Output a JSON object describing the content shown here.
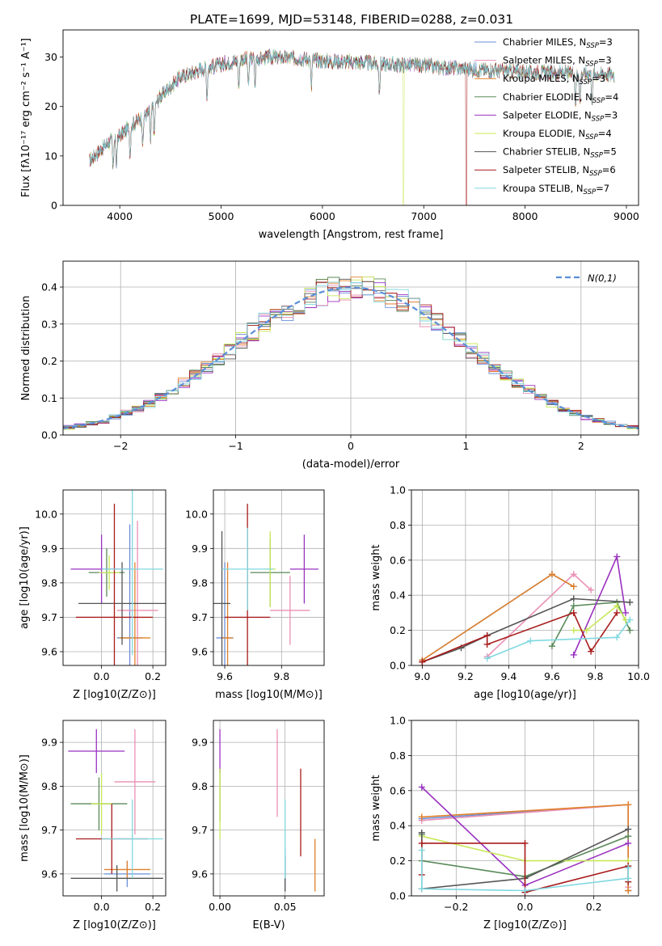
{
  "title": "PLATE=1699, MJD=53148, FIBERID=0288, z=0.031",
  "models": [
    {
      "label": "Chabrier MILES, N",
      "sub": "SSP",
      "suffix": "=3",
      "color": "#6a8fd8"
    },
    {
      "label": "Salpeter MILES, N",
      "sub": "SSP",
      "suffix": "=3",
      "color": "#e98fb4"
    },
    {
      "label": "Kroupa MILES, N",
      "sub": "SSP",
      "suffix": "=3",
      "color": "#e0812a"
    },
    {
      "label": "Chabrier ELODIE, N",
      "sub": "SSP",
      "suffix": "=4",
      "color": "#5a8a5a"
    },
    {
      "label": "Salpeter ELODIE, N",
      "sub": "SSP",
      "suffix": "=3",
      "color": "#9a32c0"
    },
    {
      "label": "Kroupa ELODIE, N",
      "sub": "SSP",
      "suffix": "=4",
      "color": "#c8e85a"
    },
    {
      "label": "Chabrier STELIB, N",
      "sub": "SSP",
      "suffix": "=5",
      "color": "#555555"
    },
    {
      "label": "Salpeter STELIB, N",
      "sub": "SSP",
      "suffix": "=6",
      "color": "#a81c1c"
    },
    {
      "label": "Kroupa STELIB, N",
      "sub": "SSP",
      "suffix": "=7",
      "color": "#80d8e0"
    }
  ],
  "chart_data": [
    {
      "type": "line",
      "name": "spectrum",
      "xlabel": "wavelength [Angstrom, rest frame]",
      "ylabel": "Flux [fλ10⁻¹⁷ erg cm⁻² s⁻¹ A⁻¹]",
      "xlim": [
        3440,
        9120
      ],
      "ylim": [
        0,
        35.5
      ],
      "xticks": [
        4000,
        5000,
        6000,
        7000,
        8000,
        9000
      ],
      "yticks": [
        0,
        10,
        20,
        30
      ],
      "continuum_x": [
        3700,
        3800,
        3900,
        4000,
        4100,
        4200,
        4300,
        4400,
        4500,
        4600,
        4800,
        5000,
        5200,
        5500,
        5800,
        6000,
        6300,
        6600,
        7000,
        7500,
        8000,
        8500,
        8900
      ],
      "continuum_y": [
        9,
        11,
        13,
        14,
        16,
        17.5,
        19,
        22,
        24,
        26,
        27.5,
        28.5,
        29.5,
        30,
        29.7,
        29.2,
        29,
        28.6,
        28.2,
        27.5,
        27,
        26.7,
        26.5
      ],
      "dropouts": [
        {
          "x": 6800,
          "model": 5
        },
        {
          "x": 7420,
          "model": 7
        }
      ]
    },
    {
      "type": "bar",
      "name": "residual-histogram",
      "xlabel": "(data-model)/error",
      "ylabel": "Normed distribution",
      "xlim": [
        -2.5,
        2.5
      ],
      "ylim": [
        0,
        0.47
      ],
      "xticks": [
        -2,
        -1,
        0,
        1,
        2
      ],
      "yticks": [
        0.0,
        0.1,
        0.2,
        0.3,
        0.4
      ],
      "bin_width": 0.1,
      "legend": "N(0,1)"
    },
    {
      "type": "scatter",
      "name": "age-vs-Z",
      "xlabel": "Z [log10(Z/Z⊙)]",
      "ylabel": "age [log10(age/yr)]",
      "xlim": [
        -0.15,
        0.25
      ],
      "ylim": [
        9.56,
        10.07
      ],
      "xticks": [
        0.0,
        0.2
      ],
      "yticks": [
        9.6,
        9.7,
        9.8,
        9.9,
        10.0
      ],
      "points": [
        {
          "model": 0,
          "x": 0.11,
          "y": 9.64,
          "xe": 0.05,
          "ye": 0.33
        },
        {
          "model": 1,
          "x": 0.14,
          "y": 9.72,
          "xe": 0.08,
          "ye": 0.26
        },
        {
          "model": 2,
          "x": 0.13,
          "y": 9.64,
          "xe": 0.06,
          "ye": 0.22
        },
        {
          "model": 3,
          "x": 0.02,
          "y": 9.83,
          "xe": 0.07,
          "ye": 0.07
        },
        {
          "model": 4,
          "x": 0.0,
          "y": 9.84,
          "xe": 0.12,
          "ye": 0.1
        },
        {
          "model": 5,
          "x": 0.03,
          "y": 9.83,
          "xe": 0.04,
          "ye": 0.05
        },
        {
          "model": 6,
          "x": 0.08,
          "y": 9.74,
          "xe": 0.17,
          "ye": 0.12
        },
        {
          "model": 7,
          "x": 0.05,
          "y": 9.7,
          "xe": 0.15,
          "ye": 0.33
        },
        {
          "model": 8,
          "x": 0.12,
          "y": 9.84,
          "xe": 0.12,
          "ye": 0.25
        }
      ]
    },
    {
      "type": "scatter",
      "name": "age-vs-mass",
      "xlabel": "mass [log10(M/M⊙)]",
      "ylabel": "",
      "xlim": [
        9.56,
        9.95
      ],
      "ylim": [
        9.56,
        10.07
      ],
      "xticks": [
        9.6,
        9.8
      ],
      "yticks": [
        9.6,
        9.7,
        9.8,
        9.9,
        10.0
      ],
      "points": [
        {
          "model": 0,
          "x": 9.6,
          "y": 9.64,
          "xe": 0.03,
          "ye": 0.22
        },
        {
          "model": 1,
          "x": 9.83,
          "y": 9.72,
          "xe": 0.07,
          "ye": 0.1
        },
        {
          "model": 2,
          "x": 9.61,
          "y": 9.64,
          "xe": 0.02,
          "ye": 0.22
        },
        {
          "model": 3,
          "x": 9.76,
          "y": 9.83,
          "xe": 0.07,
          "ye": 0.1
        },
        {
          "model": 4,
          "x": 9.88,
          "y": 9.84,
          "xe": 0.05,
          "ye": 0.1
        },
        {
          "model": 5,
          "x": 9.76,
          "y": 9.84,
          "xe": 0.02,
          "ye": 0.11
        },
        {
          "model": 6,
          "x": 9.59,
          "y": 9.74,
          "xe": 0.03,
          "ye": 0.21
        },
        {
          "model": 7,
          "x": 9.68,
          "y": 9.7,
          "xe": 0.08,
          "ye": 0.33
        },
        {
          "model": 8,
          "x": 9.68,
          "y": 9.84,
          "xe": 0.09,
          "ye": 0.12
        }
      ]
    },
    {
      "type": "line",
      "name": "mass-weight-vs-age",
      "xlabel": "age [log10(age/yr)]",
      "ylabel": "mass weight",
      "xlim": [
        8.95,
        10.0
      ],
      "ylim": [
        0,
        1
      ],
      "xticks": [
        9.0,
        9.2,
        9.4,
        9.6,
        9.8,
        10.0
      ],
      "yticks": [
        0.0,
        0.2,
        0.4,
        0.6,
        0.8,
        1.0
      ],
      "series": [
        {
          "model": 0,
          "x": [
            9.0,
            9.6,
            9.7
          ],
          "y": [
            0.03,
            0.52,
            0.45
          ]
        },
        {
          "model": 1,
          "x": [
            9.3,
            9.7,
            9.78
          ],
          "y": [
            0.05,
            0.52,
            0.43
          ]
        },
        {
          "model": 2,
          "x": [
            9.0,
            9.6,
            9.7
          ],
          "y": [
            0.03,
            0.52,
            0.45
          ]
        },
        {
          "model": 3,
          "x": [
            9.6,
            9.7,
            9.9,
            9.96
          ],
          "y": [
            0.11,
            0.34,
            0.36,
            0.2
          ]
        },
        {
          "model": 4,
          "x": [
            9.7,
            9.9,
            9.94
          ],
          "y": [
            0.06,
            0.62,
            0.3
          ]
        },
        {
          "model": 5,
          "x": [
            9.7,
            9.76,
            9.9,
            9.94
          ],
          "y": [
            0.2,
            0.2,
            0.34,
            0.26
          ]
        },
        {
          "model": 6,
          "x": [
            9.0,
            9.18,
            9.3,
            9.7,
            9.96
          ],
          "y": [
            0.02,
            0.1,
            0.17,
            0.38,
            0.36
          ]
        },
        {
          "model": 7,
          "x": [
            9.0,
            9.3,
            9.3,
            9.7,
            9.78,
            9.9
          ],
          "y": [
            0.02,
            0.17,
            0.12,
            0.3,
            0.08,
            0.3
          ]
        },
        {
          "model": 8,
          "x": [
            9.3,
            9.5,
            9.9,
            9.96
          ],
          "y": [
            0.04,
            0.14,
            0.16,
            0.26
          ]
        }
      ]
    },
    {
      "type": "scatter",
      "name": "mass-vs-Z",
      "xlabel": "Z [log10(Z/Z⊙)]",
      "ylabel": "mass [log10(M/M⊙)]",
      "xlim": [
        -0.15,
        0.25
      ],
      "ylim": [
        9.55,
        9.95
      ],
      "xticks": [
        0.0,
        0.2
      ],
      "yticks": [
        9.6,
        9.7,
        9.8,
        9.9
      ],
      "points": [
        {
          "model": 0,
          "x": 0.1,
          "y": 9.6,
          "xe": 0.09,
          "ye": 0.03
        },
        {
          "model": 1,
          "x": 0.13,
          "y": 9.81,
          "xe": 0.08,
          "ye": 0.12
        },
        {
          "model": 2,
          "x": 0.1,
          "y": 9.61,
          "xe": 0.09,
          "ye": 0.02
        },
        {
          "model": 3,
          "x": -0.01,
          "y": 9.76,
          "xe": 0.11,
          "ye": 0.06
        },
        {
          "model": 4,
          "x": -0.02,
          "y": 9.88,
          "xe": 0.11,
          "ye": 0.05
        },
        {
          "model": 5,
          "x": 0.0,
          "y": 9.76,
          "xe": 0.04,
          "ye": 0.07
        },
        {
          "model": 6,
          "x": 0.06,
          "y": 9.59,
          "xe": 0.18,
          "ye": 0.03
        },
        {
          "model": 7,
          "x": 0.04,
          "y": 9.68,
          "xe": 0.14,
          "ye": 0.08
        },
        {
          "model": 8,
          "x": 0.12,
          "y": 9.68,
          "xe": 0.12,
          "ye": 0.09
        }
      ]
    },
    {
      "type": "scatter",
      "name": "mass-vs-EBV",
      "xlabel": "E(B-V)",
      "ylabel": "",
      "xlim": [
        -0.005,
        0.08
      ],
      "ylim": [
        9.55,
        9.95
      ],
      "xticks": [
        0.0,
        0.05
      ],
      "yticks": [
        9.6,
        9.7,
        9.8,
        9.9
      ],
      "points": [
        {
          "model": 0,
          "x": 0.05,
          "y": 9.61,
          "xe": 0,
          "ye": 0.05
        },
        {
          "model": 1,
          "x": 0.044,
          "y": 9.83,
          "xe": 0,
          "ye": 0.1
        },
        {
          "model": 2,
          "x": 0.073,
          "y": 9.62,
          "xe": 0,
          "ye": 0.06
        },
        {
          "model": 3,
          "x": 0.0,
          "y": 9.78,
          "xe": 0,
          "ye": 0.06
        },
        {
          "model": 4,
          "x": 0.0,
          "y": 9.88,
          "xe": 0,
          "ye": 0.05
        },
        {
          "model": 5,
          "x": 0.0,
          "y": 9.76,
          "xe": 0,
          "ye": 0.08
        },
        {
          "model": 6,
          "x": 0.05,
          "y": 9.6,
          "xe": 0,
          "ye": 0.04
        },
        {
          "model": 7,
          "x": 0.062,
          "y": 9.74,
          "xe": 0,
          "ye": 0.1
        },
        {
          "model": 8,
          "x": 0.05,
          "y": 9.68,
          "xe": 0,
          "ye": 0.09
        }
      ]
    },
    {
      "type": "line",
      "name": "mass-weight-vs-Z",
      "xlabel": "Z [log10(Z/Z⊙)]",
      "ylabel": "mass weight",
      "xlim": [
        -0.33,
        0.33
      ],
      "ylim": [
        0,
        1
      ],
      "xticks": [
        -0.2,
        0.0,
        0.2
      ],
      "yticks": [
        0.0,
        0.2,
        0.4,
        0.6,
        0.8,
        1.0
      ],
      "series": [
        {
          "model": 0,
          "x": [
            -0.3,
            0.3,
            0.3
          ],
          "y": [
            0.44,
            0.52,
            0.03
          ]
        },
        {
          "model": 1,
          "x": [
            -0.3,
            0.3,
            0.3
          ],
          "y": [
            0.43,
            0.52,
            0.05
          ]
        },
        {
          "model": 2,
          "x": [
            -0.3,
            0.3,
            0.3
          ],
          "y": [
            0.45,
            0.52,
            0.03
          ]
        },
        {
          "model": 3,
          "x": [
            -0.3,
            -0.3,
            0.0,
            0.3
          ],
          "y": [
            0.35,
            0.2,
            0.11,
            0.34
          ]
        },
        {
          "model": 4,
          "x": [
            -0.3,
            0.0,
            0.3
          ],
          "y": [
            0.62,
            0.06,
            0.3
          ]
        },
        {
          "model": 5,
          "x": [
            -0.3,
            0.0,
            0.3
          ],
          "y": [
            0.34,
            0.2,
            0.2
          ]
        },
        {
          "model": 6,
          "x": [
            -0.3,
            -0.3,
            0.0,
            0.3
          ],
          "y": [
            0.36,
            0.04,
            0.1,
            0.38
          ]
        },
        {
          "model": 7,
          "x": [
            -0.3,
            -0.3,
            0.0,
            0.0,
            0.3,
            0.3
          ],
          "y": [
            0.12,
            0.3,
            0.3,
            0.02,
            0.17,
            0.08
          ]
        },
        {
          "model": 8,
          "x": [
            -0.3,
            -0.3,
            0.0,
            0.3,
            0.3
          ],
          "y": [
            0.26,
            0.04,
            0.03,
            0.1,
            0.16
          ]
        }
      ]
    }
  ]
}
